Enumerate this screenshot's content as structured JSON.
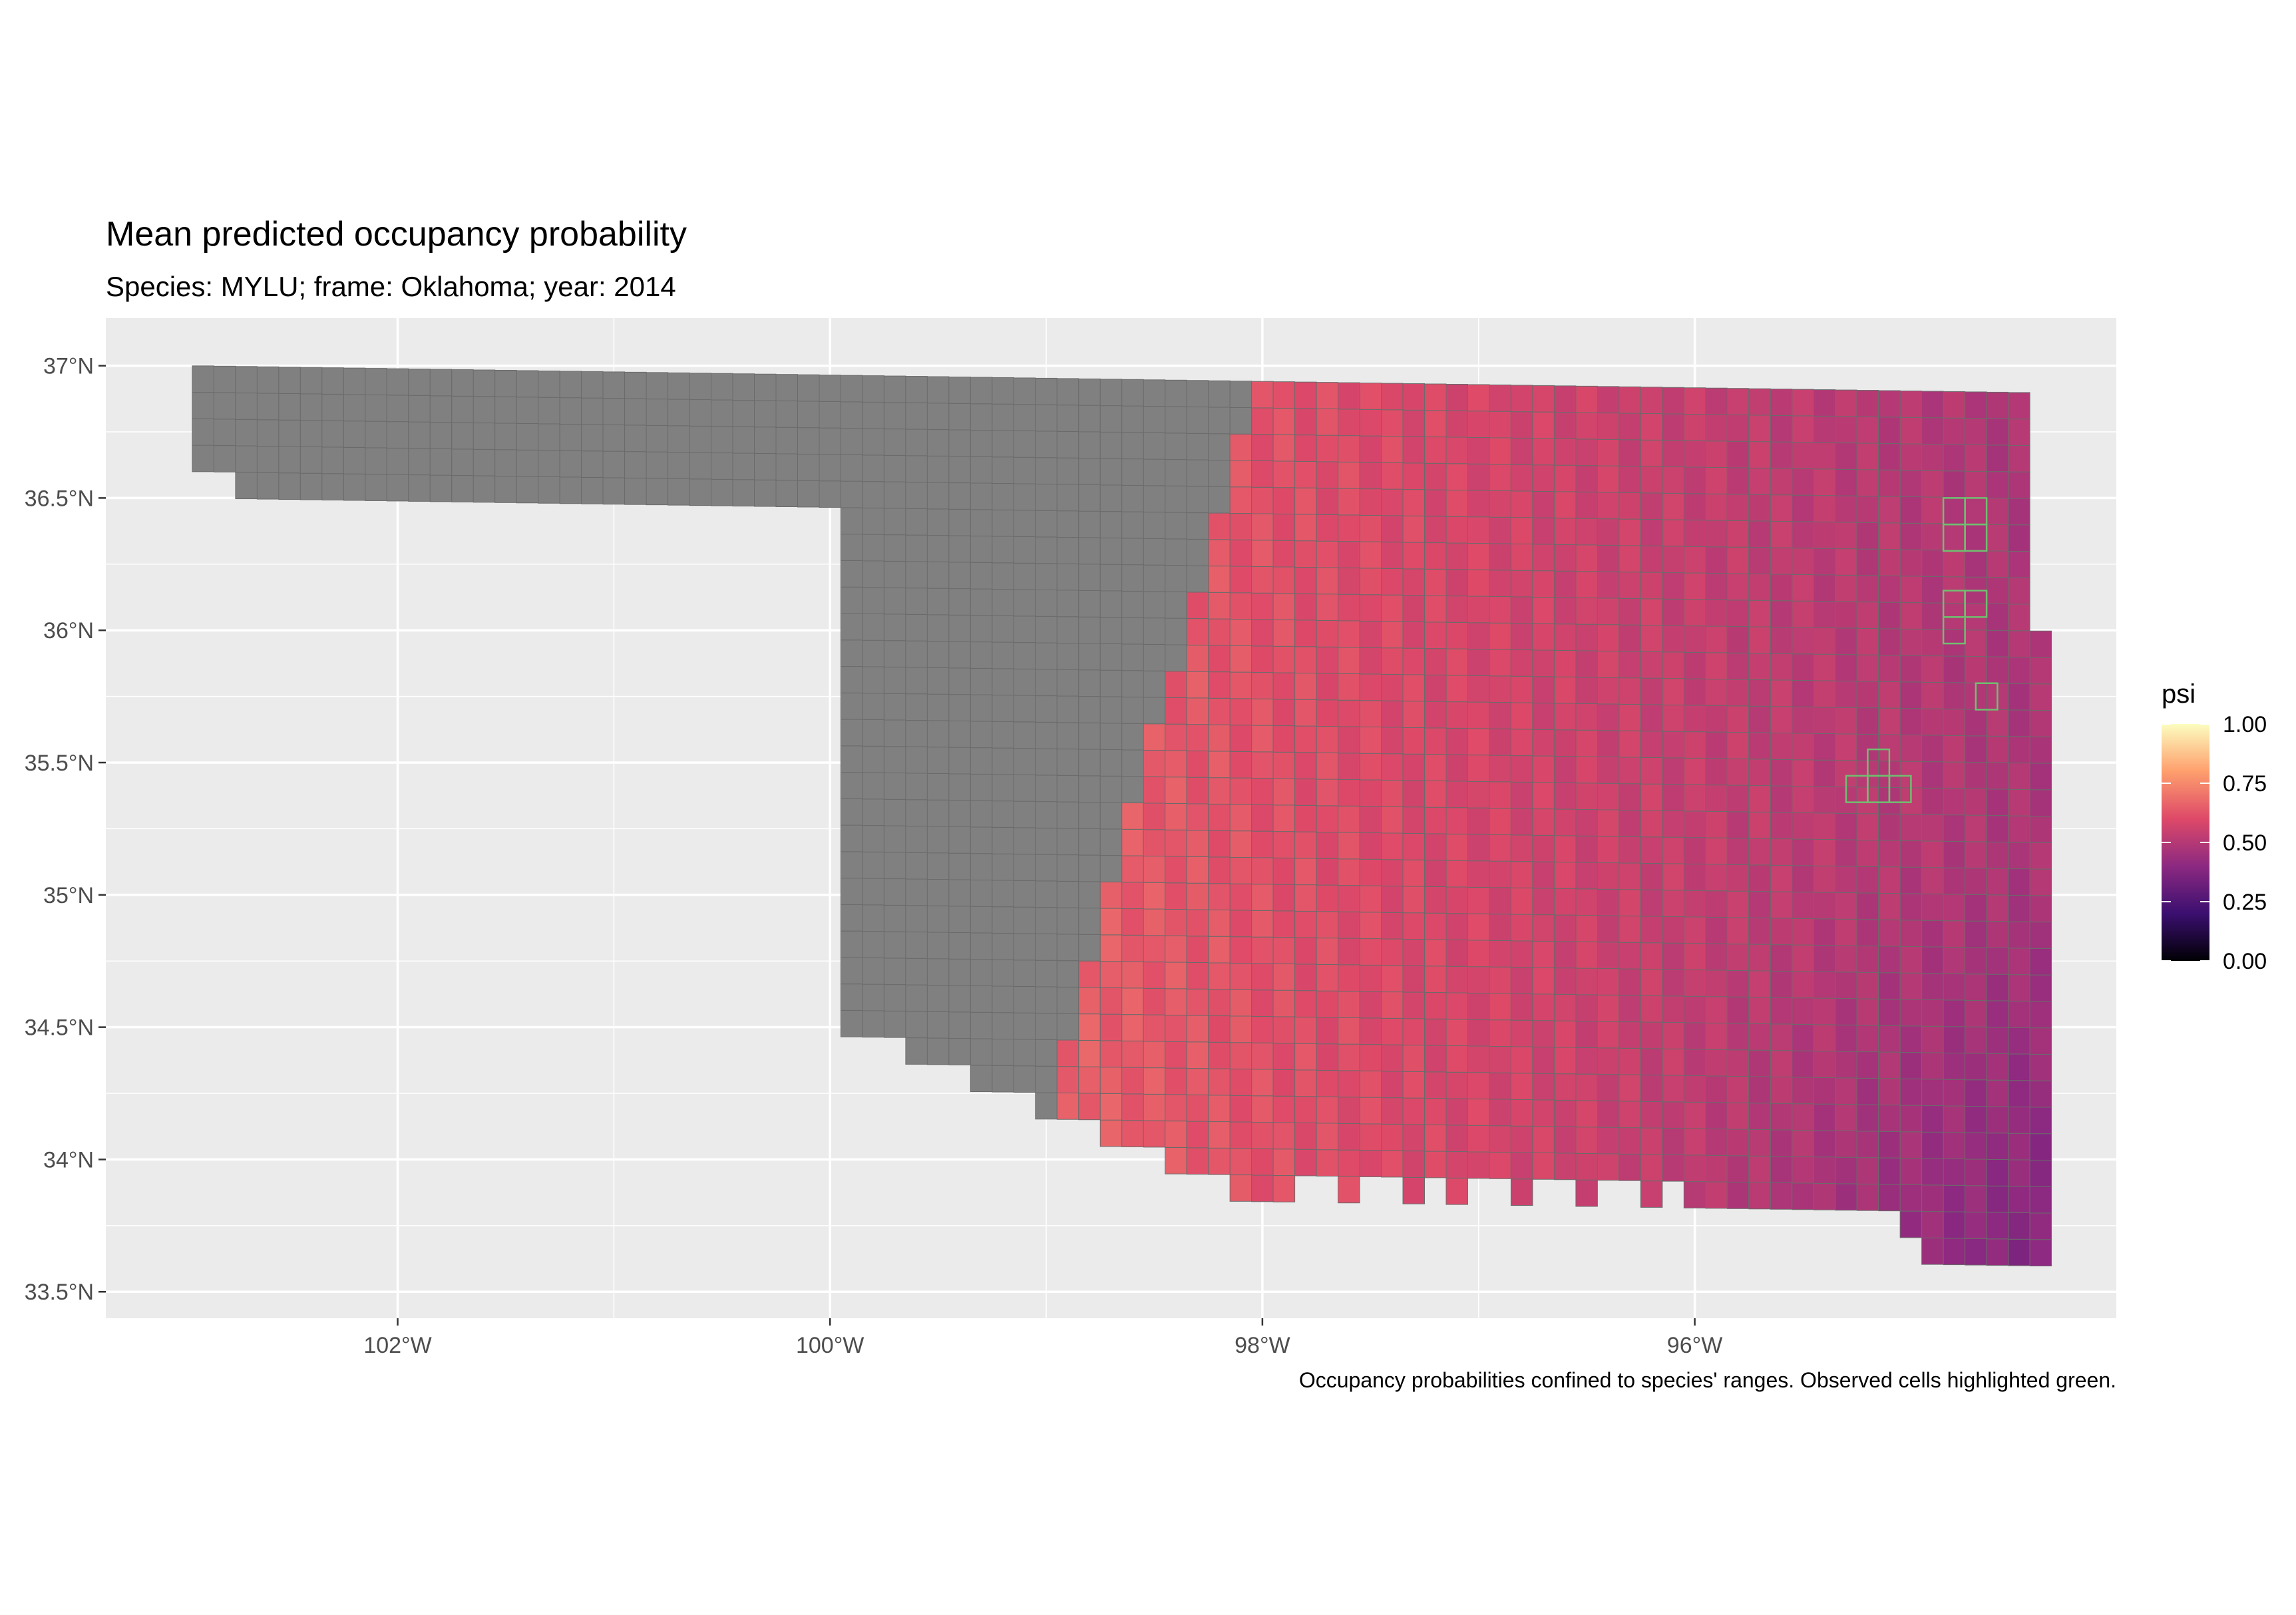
{
  "title": "Mean predicted occupancy probability",
  "subtitle": "Species: MYLU; frame: Oklahoma; year: 2014",
  "caption": "Occupancy probabilities confined to species' ranges. Observed cells highlighted green.",
  "colors": {
    "panel_bg": "#ebebeb",
    "grid": "#ffffff",
    "out_of_range_cell": "#808080",
    "cell_border": "#6b6b6b",
    "observed_outline": "#6fbf6f",
    "scale": [
      "#000004",
      "#3b0f70",
      "#8c2981",
      "#de4968",
      "#fe9f6d",
      "#fcfdbf"
    ]
  },
  "chart_data": {
    "type": "heatmap",
    "x_axis": {
      "ticks": [
        {
          "value": -102,
          "label": "102°W"
        },
        {
          "value": -100,
          "label": "100°W"
        },
        {
          "value": -98,
          "label": "98°W"
        },
        {
          "value": -96,
          "label": "96°W"
        }
      ],
      "range": [
        -103.35,
        -94.05
      ]
    },
    "y_axis": {
      "ticks": [
        {
          "value": 37.0,
          "label": "37°N"
        },
        {
          "value": 36.5,
          "label": "36.5°N"
        },
        {
          "value": 36.0,
          "label": "36°N"
        },
        {
          "value": 35.5,
          "label": "35.5°N"
        },
        {
          "value": 35.0,
          "label": "35°N"
        },
        {
          "value": 34.5,
          "label": "34.5°N"
        },
        {
          "value": 34.0,
          "label": "34°N"
        },
        {
          "value": 33.5,
          "label": "33.5°N"
        }
      ],
      "range": [
        33.4,
        37.18
      ]
    },
    "grid": true,
    "cell_size_deg": 0.1,
    "range_boundary_lon": -98.1,
    "fill_gradient": {
      "west_value": 0.62,
      "east_value": 0.48,
      "south_east_value": 0.32
    },
    "observed_cells": [
      [
        -94.8,
        36.45
      ],
      [
        -94.7,
        36.45
      ],
      [
        -94.8,
        36.35
      ],
      [
        -94.7,
        36.35
      ],
      [
        -94.8,
        36.1
      ],
      [
        -94.7,
        36.1
      ],
      [
        -94.8,
        36.0
      ],
      [
        -94.65,
        35.75
      ],
      [
        -95.15,
        35.5
      ],
      [
        -95.25,
        35.4
      ],
      [
        -95.15,
        35.4
      ],
      [
        -95.05,
        35.4
      ]
    ],
    "legend": {
      "title": "psi",
      "position": "right",
      "ticks": [
        {
          "value": 1.0,
          "label": "1.00"
        },
        {
          "value": 0.75,
          "label": "0.75"
        },
        {
          "value": 0.5,
          "label": "0.50"
        },
        {
          "value": 0.25,
          "label": "0.25"
        },
        {
          "value": 0.0,
          "label": "0.00"
        }
      ],
      "range": [
        0,
        1
      ]
    }
  }
}
